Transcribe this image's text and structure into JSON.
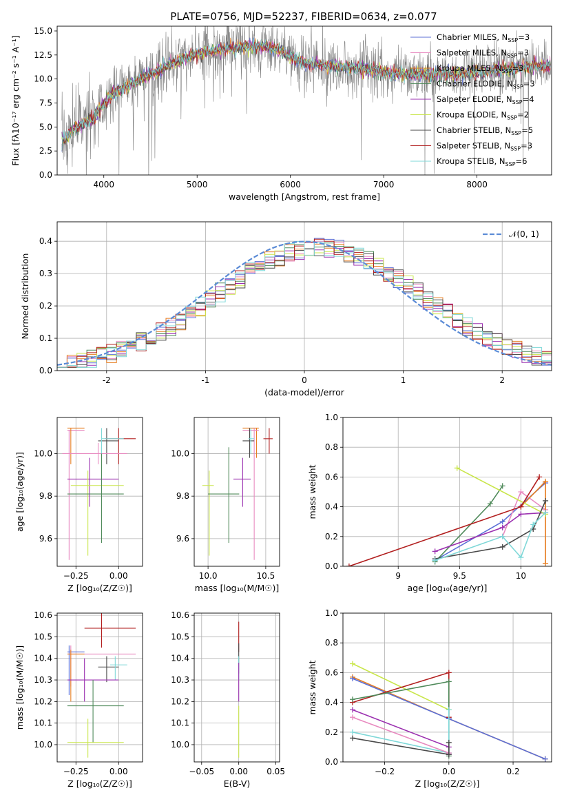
{
  "figure": {
    "title": "PLATE=0756, MJD=52237, FIBERID=0634, z=0.077"
  },
  "chart_data": [
    {
      "id": "spectrum",
      "type": "line",
      "xlabel": "wavelength [Angstrom, rest frame]",
      "ylabel": "Flux [fλ10⁻¹⁷ erg cm⁻² s⁻¹ A⁻¹]",
      "xlim": [
        3500,
        8800
      ],
      "ylim": [
        0,
        15.5
      ],
      "xticks": [
        4000,
        5000,
        6000,
        7000,
        8000
      ],
      "yticks": [
        0.0,
        2.5,
        5.0,
        7.5,
        10.0,
        12.5,
        15.0
      ],
      "legend_placement": "top-right",
      "continuum_model": {
        "x": [
          3550,
          3700,
          3800,
          3900,
          4000,
          4100,
          4300,
          4500,
          4700,
          4900,
          5100,
          5300,
          5500,
          5700,
          5900,
          6100,
          6300,
          6500,
          6700,
          6900,
          7100,
          7300,
          7500,
          7700,
          7900,
          8100,
          8300,
          8500,
          8750
        ],
        "y": [
          3.5,
          5.0,
          5.5,
          6.0,
          7.5,
          8.5,
          9.5,
          10.5,
          11.5,
          12.3,
          12.8,
          13.1,
          13.3,
          13.5,
          12.9,
          11.8,
          11.5,
          11.3,
          11.2,
          10.9,
          10.6,
          10.5,
          10.5,
          10.5,
          10.6,
          10.8,
          11.0,
          11.2,
          11.4
        ]
      },
      "series": [
        {
          "name": "Chabrier MILES, N",
          "sub": "SSP",
          "suffix": "=3",
          "color": "#5b6fd6"
        },
        {
          "name": "Salpeter MILES, N",
          "sub": "SSP",
          "suffix": "=3",
          "color": "#e88ac0"
        },
        {
          "name": "Kroupa MILES, N",
          "sub": "SSP",
          "suffix": "=3",
          "color": "#e67e22"
        },
        {
          "name": "Chabrier ELODIE, N",
          "sub": "SSP",
          "suffix": "=3",
          "color": "#4f8a5a"
        },
        {
          "name": "Salpeter ELODIE, N",
          "sub": "SSP",
          "suffix": "=4",
          "color": "#9b30b0"
        },
        {
          "name": "Kroupa ELODIE, N",
          "sub": "SSP",
          "suffix": "=2",
          "color": "#c9e64a"
        },
        {
          "name": "Chabrier STELIB, N",
          "sub": "SSP",
          "suffix": "=5",
          "color": "#4a4a4a"
        },
        {
          "name": "Salpeter STELIB, N",
          "sub": "SSP",
          "suffix": "=3",
          "color": "#b21f1f"
        },
        {
          "name": "Kroupa STELIB, N",
          "sub": "SSP",
          "suffix": "=6",
          "color": "#7fd8d8"
        }
      ],
      "data_color": "#808080"
    },
    {
      "id": "residuals",
      "type": "line",
      "xlabel": "(data-model)/error",
      "ylabel": "Normed distribution",
      "xlim": [
        -2.5,
        2.5
      ],
      "ylim": [
        0,
        0.46
      ],
      "xticks": [
        -2,
        -1,
        0,
        1,
        2
      ],
      "yticks": [
        0.0,
        0.1,
        0.2,
        0.3,
        0.4
      ],
      "grid": true,
      "legend_placement": "top-right",
      "normal_label": "𝒩(0, 1)",
      "normal_color": "#5b8bd6",
      "bin_width": 0.1
    },
    {
      "id": "age-vs-Z",
      "type": "scatter",
      "xlabel": "Z [log₁₀(Z/Z☉)]",
      "ylabel": "age  [log₁₀(age/yr)]",
      "xlim": [
        -0.36,
        0.14
      ],
      "ylim": [
        9.47,
        10.17
      ],
      "xticks": [
        -0.25,
        0.0
      ],
      "xticklabels": [
        "−0.25",
        "0.00"
      ],
      "yticks": [
        9.6,
        9.8,
        10.0
      ],
      "grid": true,
      "points": [
        {
          "x": -0.29,
          "y": 10.11,
          "xlo": -0.3,
          "xhi": -0.2,
          "ylo": 9.5,
          "yhi": 10.11,
          "color": "#e88ac0"
        },
        {
          "x": -0.28,
          "y": 10.12,
          "xlo": -0.3,
          "xhi": -0.2,
          "ylo": 9.95,
          "yhi": 10.12,
          "color": "#e67e22"
        },
        {
          "x": -0.07,
          "y": 10.06,
          "xlo": -0.12,
          "xhi": 0.0,
          "ylo": 9.95,
          "yhi": 10.12,
          "color": "#4a4a4a"
        },
        {
          "x": 0.0,
          "y": 10.07,
          "xlo": -0.08,
          "xhi": 0.1,
          "ylo": 9.95,
          "yhi": 10.12,
          "color": "#b21f1f"
        },
        {
          "x": -0.12,
          "y": 10.0,
          "xlo": -0.33,
          "xhi": 0.05,
          "ylo": 9.95,
          "yhi": 10.05,
          "color": "#e88ac0"
        },
        {
          "x": -0.17,
          "y": 9.88,
          "xlo": -0.3,
          "xhi": 0.0,
          "ylo": 9.75,
          "yhi": 9.98,
          "color": "#9b30b0"
        },
        {
          "x": -0.18,
          "y": 9.85,
          "xlo": -0.28,
          "xhi": 0.03,
          "ylo": 9.52,
          "yhi": 9.92,
          "color": "#c9e64a"
        },
        {
          "x": -0.1,
          "y": 9.81,
          "xlo": -0.3,
          "xhi": 0.03,
          "ylo": 9.58,
          "yhi": 10.03,
          "color": "#4f8a5a"
        },
        {
          "x": -0.1,
          "y": 10.07,
          "xlo": -0.1,
          "xhi": 0.03,
          "ylo": 10.0,
          "yhi": 10.12,
          "color": "#7fd8d8"
        }
      ]
    },
    {
      "id": "age-vs-mass",
      "type": "scatter",
      "xlabel": "mass [log₁₀(M/M☉)]",
      "ylabel": "",
      "xlim": [
        9.88,
        10.62
      ],
      "ylim": [
        9.47,
        10.17
      ],
      "xticks": [
        10.0,
        10.5
      ],
      "xticklabels": [
        "10.0",
        "10.5"
      ],
      "yticks": [
        9.6,
        9.8,
        10.0
      ],
      "grid": true,
      "points": [
        {
          "x": 10.42,
          "y": 10.12,
          "xlo": 10.3,
          "xhi": 10.44,
          "ylo": 9.98,
          "yhi": 10.12,
          "color": "#e67e22"
        },
        {
          "x": 10.4,
          "y": 10.11,
          "xlo": 10.3,
          "xhi": 10.44,
          "ylo": 9.5,
          "yhi": 10.12,
          "color": "#e88ac0"
        },
        {
          "x": 10.36,
          "y": 10.06,
          "xlo": 10.3,
          "xhi": 10.4,
          "ylo": 9.98,
          "yhi": 10.12,
          "color": "#4a4a4a"
        },
        {
          "x": 10.53,
          "y": 10.07,
          "xlo": 10.48,
          "xhi": 10.56,
          "ylo": 10.0,
          "yhi": 10.12,
          "color": "#b21f1f"
        },
        {
          "x": 10.3,
          "y": 9.88,
          "xlo": 10.22,
          "xhi": 10.37,
          "ylo": 9.75,
          "yhi": 9.98,
          "color": "#9b30b0"
        },
        {
          "x": 10.01,
          "y": 9.85,
          "xlo": 9.95,
          "xhi": 10.05,
          "ylo": 9.52,
          "yhi": 9.92,
          "color": "#c9e64a"
        },
        {
          "x": 10.18,
          "y": 9.81,
          "xlo": 10.0,
          "xhi": 10.27,
          "ylo": 9.58,
          "yhi": 10.03,
          "color": "#4f8a5a"
        },
        {
          "x": 10.37,
          "y": 10.07,
          "xlo": 10.35,
          "xhi": 10.4,
          "ylo": 10.0,
          "yhi": 10.12,
          "color": "#7fd8d8"
        }
      ]
    },
    {
      "id": "weight-vs-age",
      "type": "line",
      "xlabel": "age  [log₁₀(age/yr)]",
      "ylabel": "mass weight",
      "xlim": [
        8.55,
        10.25
      ],
      "ylim": [
        0,
        1.0
      ],
      "xticks": [
        9.0,
        9.5,
        10.0
      ],
      "yticks": [
        0.0,
        0.2,
        0.4,
        0.6,
        0.8,
        1.0
      ],
      "grid": true,
      "series": [
        {
          "color": "#5b6fd6",
          "x": [
            9.3,
            9.85,
            10.2
          ],
          "y": [
            0.04,
            0.3,
            0.56
          ]
        },
        {
          "color": "#e88ac0",
          "x": [
            9.85,
            10.0,
            10.2
          ],
          "y": [
            0.2,
            0.5,
            0.38
          ]
        },
        {
          "color": "#e67e22",
          "x": [
            10.0,
            10.2,
            10.2
          ],
          "y": [
            0.4,
            0.57,
            0.02
          ]
        },
        {
          "color": "#4f8a5a",
          "x": [
            9.3,
            9.75,
            9.85
          ],
          "y": [
            0.03,
            0.42,
            0.54
          ]
        },
        {
          "color": "#9b30b0",
          "x": [
            9.3,
            9.85,
            10.0,
            10.2
          ],
          "y": [
            0.1,
            0.26,
            0.35,
            0.36
          ]
        },
        {
          "color": "#c9e64a",
          "x": [
            9.48,
            10.2
          ],
          "y": [
            0.66,
            0.35
          ]
        },
        {
          "color": "#4a4a4a",
          "x": [
            9.3,
            9.85,
            10.1,
            10.2
          ],
          "y": [
            0.05,
            0.13,
            0.25,
            0.44
          ]
        },
        {
          "color": "#b21f1f",
          "x": [
            8.6,
            10.0,
            10.15
          ],
          "y": [
            0.0,
            0.4,
            0.6
          ]
        },
        {
          "color": "#7fd8d8",
          "x": [
            9.3,
            9.85,
            10.0,
            10.1,
            10.2
          ],
          "y": [
            0.04,
            0.2,
            0.06,
            0.28,
            0.36
          ]
        }
      ]
    },
    {
      "id": "mass-vs-Z",
      "type": "scatter",
      "xlabel": "Z [log₁₀(Z/Z☉)]",
      "ylabel": "mass [log₁₀(M/M☉)]",
      "xlim": [
        -0.36,
        0.14
      ],
      "ylim": [
        9.92,
        10.61
      ],
      "xticks": [
        -0.25,
        0.0
      ],
      "xticklabels": [
        "−0.25",
        "0.00"
      ],
      "yticks": [
        10.0,
        10.1,
        10.2,
        10.3,
        10.4,
        10.5,
        10.6
      ],
      "grid": true,
      "points": [
        {
          "x": -0.1,
          "y": 10.54,
          "xlo": -0.2,
          "xhi": 0.1,
          "ylo": 10.45,
          "yhi": 10.61,
          "color": "#b21f1f"
        },
        {
          "x": -0.29,
          "y": 10.43,
          "xlo": -0.3,
          "xhi": -0.2,
          "ylo": 10.23,
          "yhi": 10.46,
          "color": "#5b6fd6"
        },
        {
          "x": -0.28,
          "y": 10.42,
          "xlo": -0.3,
          "xhi": 0.1,
          "ylo": 10.27,
          "yhi": 10.46,
          "color": "#e88ac0"
        },
        {
          "x": -0.28,
          "y": 10.42,
          "xlo": -0.3,
          "xhi": -0.2,
          "ylo": 10.2,
          "yhi": 10.44,
          "color": "#e67e22"
        },
        {
          "x": -0.07,
          "y": 10.36,
          "xlo": -0.12,
          "xhi": 0.0,
          "ylo": 10.29,
          "yhi": 10.41,
          "color": "#4a4a4a"
        },
        {
          "x": -0.02,
          "y": 10.37,
          "xlo": -0.05,
          "xhi": 0.05,
          "ylo": 10.3,
          "yhi": 10.41,
          "color": "#7fd8d8"
        },
        {
          "x": -0.2,
          "y": 10.3,
          "xlo": -0.3,
          "xhi": 0.0,
          "ylo": 10.2,
          "yhi": 10.4,
          "color": "#9b30b0"
        },
        {
          "x": -0.15,
          "y": 10.18,
          "xlo": -0.3,
          "xhi": 0.03,
          "ylo": 10.01,
          "yhi": 10.3,
          "color": "#4f8a5a"
        },
        {
          "x": -0.18,
          "y": 10.01,
          "xlo": -0.3,
          "xhi": 0.03,
          "ylo": 9.94,
          "yhi": 10.12,
          "color": "#c9e64a"
        }
      ]
    },
    {
      "id": "mass-vs-EBV",
      "type": "scatter",
      "xlabel": "E(B-V)",
      "ylabel": "",
      "xlim": [
        -0.06,
        0.055
      ],
      "ylim": [
        9.92,
        10.61
      ],
      "xticks": [
        -0.05,
        0.0,
        0.05
      ],
      "xticklabels": [
        "−0.05",
        "0.00",
        "0.05"
      ],
      "yticks": [
        10.0,
        10.1,
        10.2,
        10.3,
        10.4,
        10.5,
        10.6
      ],
      "grid": true,
      "points": [
        {
          "x": 0.0,
          "y": 10.54,
          "xlo": 0.0,
          "xhi": 0.0,
          "ylo": 10.43,
          "yhi": 10.57,
          "color": "#b21f1f"
        },
        {
          "x": 0.0,
          "y": 10.43,
          "xlo": 0.0,
          "xhi": 0.0,
          "ylo": 10.33,
          "yhi": 10.47,
          "color": "#4a4a4a"
        },
        {
          "x": 0.0,
          "y": 10.37,
          "xlo": 0.0,
          "xhi": 0.0,
          "ylo": 10.3,
          "yhi": 10.41,
          "color": "#7fd8d8"
        },
        {
          "x": 0.0,
          "y": 10.3,
          "xlo": 0.0,
          "xhi": 0.0,
          "ylo": 10.2,
          "yhi": 10.38,
          "color": "#9b30b0"
        },
        {
          "x": 0.0,
          "y": 10.1,
          "xlo": 0.0,
          "xhi": 0.0,
          "ylo": 9.94,
          "yhi": 10.18,
          "color": "#c9e64a"
        }
      ]
    },
    {
      "id": "weight-vs-Z",
      "type": "line",
      "xlabel": "Z [log₁₀(Z/Z☉)]",
      "ylabel": "mass weight",
      "xlim": [
        -0.33,
        0.32
      ],
      "ylim": [
        0,
        1.0
      ],
      "xticks": [
        -0.2,
        0.0,
        0.2
      ],
      "xticklabels": [
        "−0.2",
        "0.0",
        "0.2"
      ],
      "yticks": [
        0.0,
        0.2,
        0.4,
        0.6,
        0.8,
        1.0
      ],
      "grid": true,
      "series": [
        {
          "color": "#c9e64a",
          "x": [
            -0.3,
            0.0
          ],
          "y": [
            0.66,
            0.35
          ]
        },
        {
          "color": "#e67e22",
          "x": [
            -0.3,
            0.0,
            0.3
          ],
          "y": [
            0.57,
            0.29,
            0.02
          ]
        },
        {
          "color": "#5b6fd6",
          "x": [
            -0.3,
            0.0,
            0.3
          ],
          "y": [
            0.56,
            0.29,
            0.02
          ]
        },
        {
          "color": "#b21f1f",
          "x": [
            -0.3,
            0.0,
            0.0
          ],
          "y": [
            0.4,
            0.6,
            0.3
          ]
        },
        {
          "color": "#4f8a5a",
          "x": [
            -0.3,
            0.0,
            0.0
          ],
          "y": [
            0.42,
            0.54,
            0.04
          ]
        },
        {
          "color": "#9b30b0",
          "x": [
            -0.3,
            0.0,
            0.0
          ],
          "y": [
            0.35,
            0.1,
            0.05
          ]
        },
        {
          "color": "#7fd8d8",
          "x": [
            -0.3,
            0.0,
            0.0
          ],
          "y": [
            0.2,
            0.06,
            0.35
          ]
        },
        {
          "color": "#e88ac0",
          "x": [
            -0.3,
            0.0
          ],
          "y": [
            0.3,
            0.06
          ]
        },
        {
          "color": "#4a4a4a",
          "x": [
            -0.3,
            0.0,
            0.0
          ],
          "y": [
            0.16,
            0.05,
            0.13
          ]
        }
      ]
    }
  ]
}
